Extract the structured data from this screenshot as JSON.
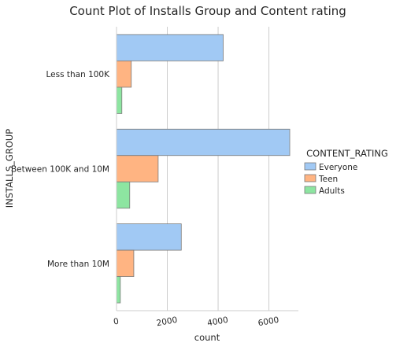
{
  "chart_data": {
    "type": "bar",
    "orientation": "horizontal",
    "title": "Count Plot of Installs Group and Content rating",
    "xlabel": "count",
    "ylabel": "INSTALLS_GROUP",
    "categories": [
      "Less than 100K",
      "Between 100K and 10M",
      "More than 10M"
    ],
    "series": [
      {
        "name": "Everyone",
        "values": [
          4200,
          6820,
          2550
        ],
        "color": "#a1c9f4"
      },
      {
        "name": "Teen",
        "values": [
          580,
          1640,
          680
        ],
        "color": "#ffb482"
      },
      {
        "name": "Adults",
        "values": [
          210,
          520,
          150
        ],
        "color": "#8de5a1"
      }
    ],
    "xticks": [
      0,
      2000,
      4000,
      6000
    ],
    "xlim": [
      0,
      7160
    ],
    "grid": "vertical",
    "legend": {
      "title": "CONTENT_RATING",
      "position": "right"
    }
  }
}
